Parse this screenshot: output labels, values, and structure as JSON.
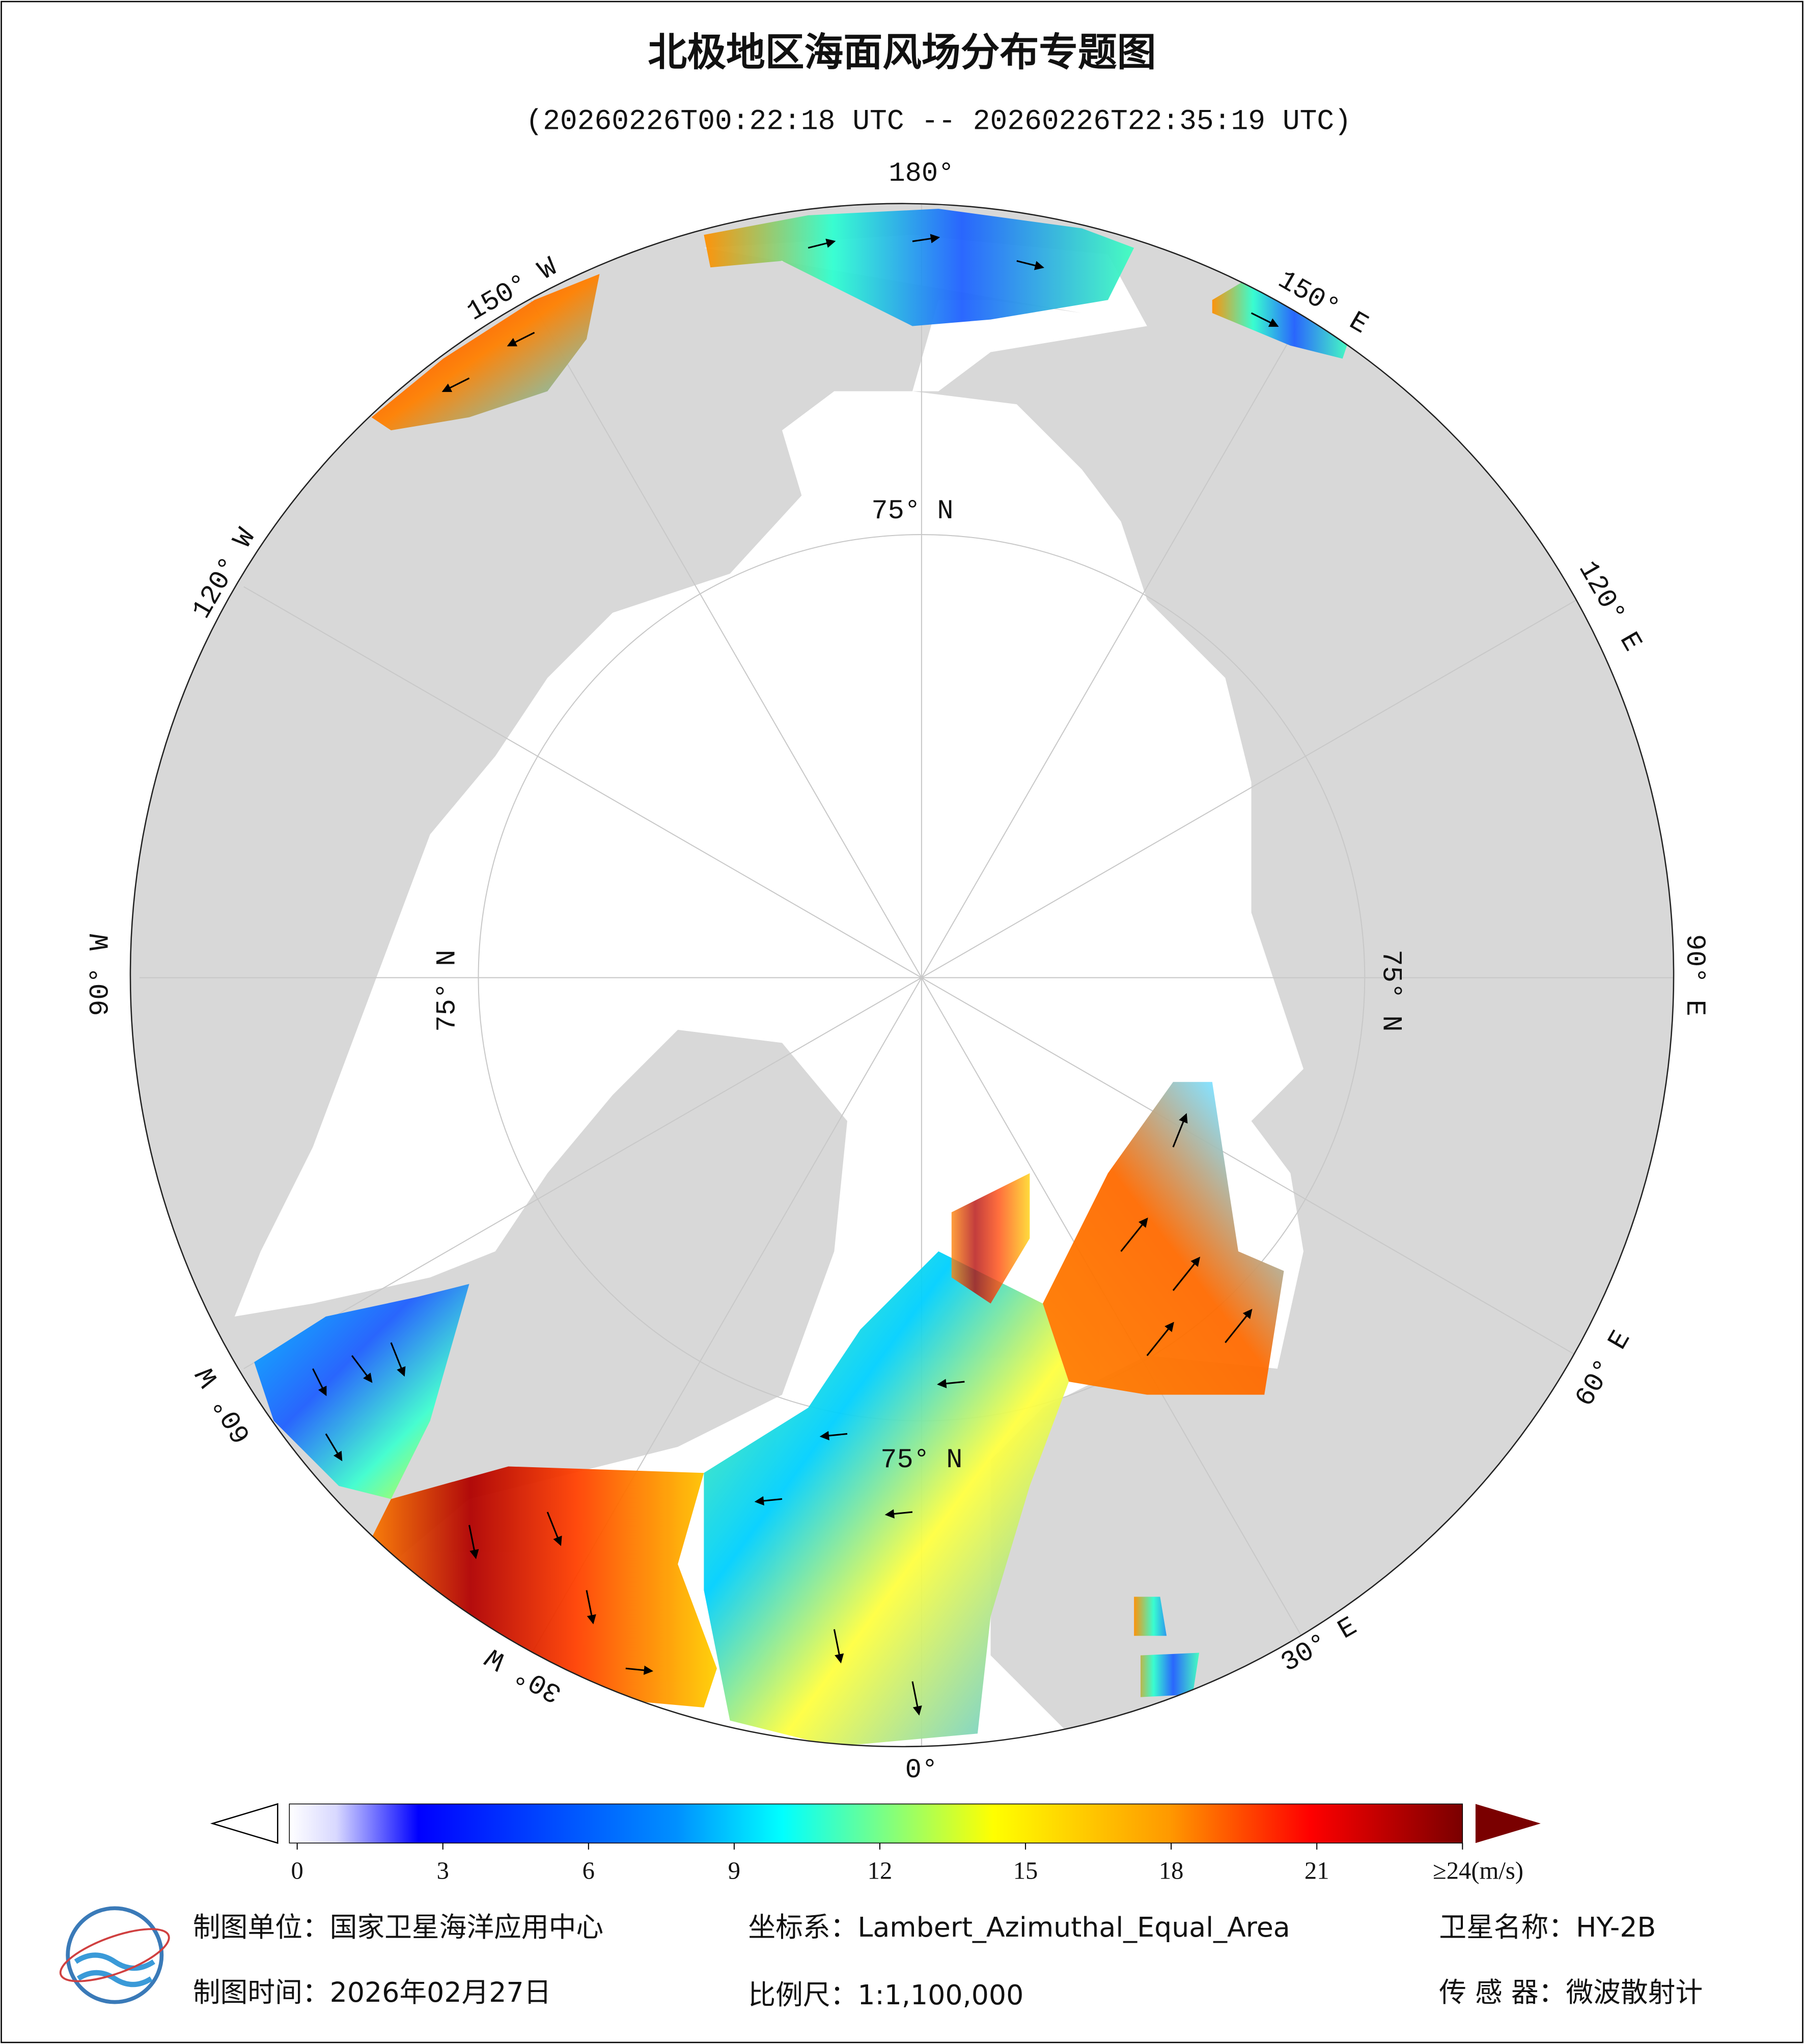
{
  "header": {
    "title": "北极地区海面风场分布专题图",
    "time_range": "(20260226T00:22:18 UTC -- 20260226T22:35:19 UTC)"
  },
  "map": {
    "longitude_labels": [
      "180°",
      "150° W",
      "120° W",
      "90° W",
      "60° W",
      "30° W",
      "0°",
      "30° E",
      "60° E",
      "90° E",
      "120° E",
      "150° E"
    ],
    "latitude_labels": [
      "75° N",
      "75° N",
      "75° N",
      "75° N"
    ]
  },
  "colorbar": {
    "ticks": [
      0,
      3,
      6,
      9,
      12,
      15,
      18,
      21,
      {
        "value": 24,
        "label": "≥24(m/s)"
      }
    ]
  },
  "footer": {
    "agency": "制图单位：国家卫星海洋应用中心",
    "projection": "坐标系：Lambert_Azimuthal_Equal_Area",
    "satellite": "卫星名称：HY-2B",
    "date": "制图时间：2026年02月27日",
    "scale": "比例尺：1:1,100,000",
    "sensor": "传 感 器：微波散射计"
  }
}
